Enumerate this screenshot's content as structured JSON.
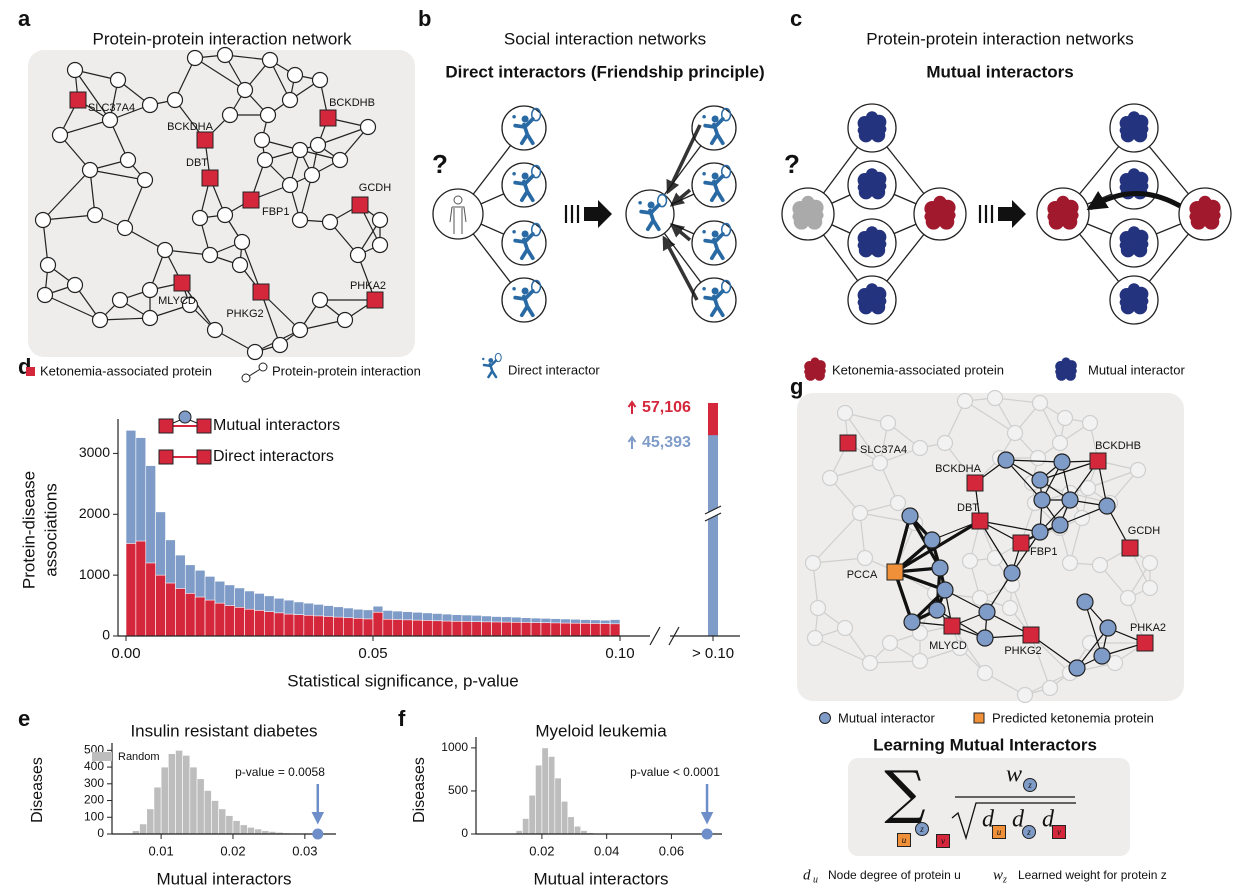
{
  "figure": {
    "panel_labels": [
      "a",
      "b",
      "c",
      "d",
      "e",
      "f",
      "g"
    ],
    "panel_a": {
      "title": "Protein-protein interaction network",
      "protein_labels": [
        "SLC37A4",
        "BCKDHA",
        "BCKDHB",
        "DBT",
        "FBP1",
        "GCDH",
        "MLYCD",
        "PHKG2",
        "PHKA2"
      ],
      "legend": [
        "Ketonemia-associated protein",
        "Protein-protein interaction"
      ]
    },
    "panel_b": {
      "title": "Social interaction networks",
      "subtitle": "Direct interactors (Friendship principle)",
      "question_mark": "?",
      "legend": "Direct interactor"
    },
    "panel_c": {
      "title": "Protein-protein interaction networks",
      "subtitle": "Mutual interactors",
      "question_mark": "?",
      "legend": [
        "Ketonemia-associated protein",
        "Mutual interactor"
      ]
    },
    "panel_g": {
      "protein_labels": [
        "SLC37A4",
        "BCKDHA",
        "BCKDHB",
        "DBT",
        "FBP1",
        "GCDH",
        "MLYCD",
        "PHKG2",
        "PHKA2",
        "PCCA"
      ],
      "legend": [
        "Mutual interactor",
        "Predicted ketonemia protein"
      ],
      "formula_title": "Learning Mutual Interactors",
      "formula": {
        "sum": "∑",
        "numerator": "w",
        "denominator_symbol": "d",
        "subscripts": [
          "u",
          "z",
          "v"
        ]
      },
      "notation": [
        {
          "symbol": "d",
          "subscript": "u",
          "text": "Node degree of protein u"
        },
        {
          "symbol": "w",
          "subscript": "z",
          "text": "Learned weight for protein z"
        }
      ]
    }
  },
  "chart_data": [
    {
      "type": "histogram",
      "xlabel": "Statistical significance, p-value",
      "ylabel_lines": [
        "Protein-disease",
        "associations"
      ],
      "bins": [
        0,
        0.002,
        0.004,
        0.006,
        0.008,
        0.01,
        0.012,
        0.014,
        0.016,
        0.018,
        0.02,
        0.022,
        0.024,
        0.026,
        0.028,
        0.03,
        0.032,
        0.034,
        0.036,
        0.038,
        0.04,
        0.042,
        0.044,
        0.046,
        0.048,
        0.05,
        0.052,
        0.054,
        0.056,
        0.058,
        0.06,
        0.062,
        0.064,
        0.066,
        0.068,
        0.07,
        0.072,
        0.074,
        0.076,
        0.078,
        0.08,
        0.082,
        0.084,
        0.086,
        0.088,
        0.09,
        0.092,
        0.094,
        0.096,
        0.098,
        0.1
      ],
      "series": [
        {
          "name": "Mutual interactors",
          "color": "#7f9cc8",
          "values": [
            3380,
            3260,
            2800,
            2040,
            1580,
            1330,
            1170,
            1080,
            980,
            900,
            840,
            790,
            740,
            700,
            660,
            620,
            590,
            560,
            540,
            520,
            500,
            480,
            460,
            440,
            430,
            490,
            420,
            410,
            400,
            390,
            380,
            370,
            360,
            350,
            345,
            340,
            330,
            320,
            315,
            310,
            300,
            295,
            290,
            285,
            280,
            275,
            270,
            265,
            260,
            270
          ],
          "overflow": 45393,
          "overflow_label": "45,393"
        },
        {
          "name": "Direct interactors",
          "color": "#d5273c",
          "values": [
            1520,
            1560,
            1200,
            1000,
            870,
            780,
            700,
            640,
            590,
            540,
            500,
            470,
            440,
            420,
            400,
            380,
            360,
            350,
            340,
            330,
            320,
            310,
            300,
            290,
            280,
            390,
            275,
            270,
            265,
            260,
            255,
            250,
            245,
            240,
            238,
            235,
            232,
            230,
            228,
            225,
            222,
            220,
            218,
            215,
            212,
            210,
            208,
            205,
            202,
            200
          ],
          "overflow": 57106,
          "overflow_label": "57,106"
        }
      ],
      "overflow_tick": "> 0.10",
      "xlim": [
        0,
        0.1
      ],
      "xticks": [
        {
          "value": 0,
          "label": "0.00"
        },
        {
          "value": 0.05,
          "label": "0.05"
        },
        {
          "value": 0.1,
          "label": "0.10"
        }
      ],
      "ylim": [
        0,
        3500
      ],
      "yticks": [
        0,
        1000,
        2000,
        3000
      ]
    },
    {
      "type": "histogram",
      "title": "Insulin resistant diabetes",
      "xlabel": "Mutual interactors",
      "ylabel": "Diseases",
      "bins": [
        0.005,
        0.006,
        0.007,
        0.008,
        0.009,
        0.01,
        0.011,
        0.012,
        0.013,
        0.014,
        0.015,
        0.016,
        0.017,
        0.018,
        0.019,
        0.02,
        0.021,
        0.022,
        0.023,
        0.024,
        0.025,
        0.026,
        0.027,
        0.028,
        0.029,
        0.03,
        0.031
      ],
      "series": [
        {
          "name": "Random",
          "color": "#bdbdbd",
          "values": [
            5,
            20,
            60,
            150,
            280,
            400,
            480,
            500,
            470,
            400,
            330,
            260,
            200,
            150,
            110,
            80,
            55,
            40,
            30,
            20,
            15,
            10,
            6,
            4,
            2,
            1
          ]
        }
      ],
      "observed": 0.0318,
      "observed_color": "#6d8ec8",
      "annotation": "p-value = 0.0058",
      "xlim": [
        0.004,
        0.0335
      ],
      "xticks": [
        0.01,
        0.02,
        0.03
      ],
      "ylim": [
        0,
        520
      ],
      "yticks": [
        0,
        100,
        200,
        300,
        400,
        500
      ]
    },
    {
      "type": "histogram",
      "title": "Myeloid leukemia",
      "xlabel": "Mutual interactors",
      "ylabel": "Diseases",
      "bins": [
        0.01,
        0.012,
        0.014,
        0.016,
        0.018,
        0.02,
        0.022,
        0.024,
        0.026,
        0.028,
        0.03,
        0.032,
        0.034,
        0.036,
        0.038,
        0.04,
        0.042
      ],
      "values": [
        5,
        40,
        180,
        450,
        800,
        1000,
        900,
        650,
        380,
        200,
        90,
        40,
        15,
        6,
        2,
        1
      ],
      "color": "#bdbdbd",
      "observed": 0.071,
      "observed_color": "#6d8ec8",
      "annotation": "p-value < 0.0001",
      "xlim": [
        0.0015,
        0.075
      ],
      "xticks": [
        0.02,
        0.04,
        0.06
      ],
      "ylim": [
        0,
        1080
      ],
      "yticks": [
        0,
        500,
        1000
      ]
    }
  ]
}
